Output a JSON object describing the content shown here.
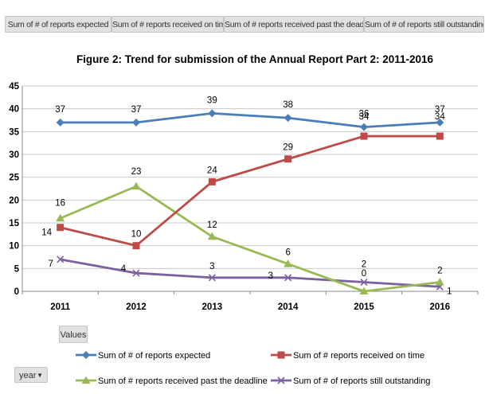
{
  "pivot": {
    "field_buttons": [
      "Sum of # of reports expected",
      "Sum of # reports received on time",
      "Sum of # reports received past the deadline",
      "Sum of # of reports still outstanding"
    ],
    "values_button": "Values",
    "axis_field_button": "year",
    "axis_field_arrow": "▼"
  },
  "colors": {
    "expected": "#4a7ebb",
    "on_time": "#be4b48",
    "past_deadline": "#98b954",
    "outstanding": "#7d60a0",
    "grid": "#c8c8c8"
  },
  "chart_data": {
    "type": "line",
    "title": "Figure 2: Trend for submission of the Annual Report Part 2:  2011-2016",
    "xlabel": "",
    "ylabel": "",
    "categories": [
      "2011",
      "2012",
      "2013",
      "2014",
      "2015",
      "2016"
    ],
    "ylim": [
      0,
      45
    ],
    "yticks": [
      "0",
      "5",
      "10",
      "15",
      "20",
      "25",
      "30",
      "35",
      "40",
      "45"
    ],
    "grid": true,
    "legend_position": "bottom",
    "series": [
      {
        "name": "Sum of # of reports expected",
        "marker": "diamond",
        "color_key": "expected",
        "values": [
          37,
          37,
          39,
          38,
          36,
          37
        ],
        "labels": [
          "37",
          "37",
          "39",
          "38",
          "36",
          "37"
        ]
      },
      {
        "name": "Sum of # reports received on time",
        "marker": "square",
        "color_key": "on_time",
        "values": [
          14,
          10,
          24,
          29,
          34,
          34
        ],
        "labels": [
          "14",
          "10",
          "24",
          "29",
          "34",
          "34"
        ]
      },
      {
        "name": "Sum of # reports received past the deadline",
        "marker": "triangle",
        "color_key": "past_deadline",
        "values": [
          16,
          23,
          12,
          6,
          0,
          2
        ],
        "labels": [
          "16",
          "23",
          "12",
          "6",
          "0",
          "2"
        ]
      },
      {
        "name": "Sum of # of reports still outstanding",
        "marker": "x",
        "color_key": "outstanding",
        "values": [
          7,
          4,
          3,
          3,
          2,
          1
        ],
        "labels": [
          "7",
          "4",
          "3",
          "3",
          "2",
          "1"
        ]
      }
    ]
  }
}
